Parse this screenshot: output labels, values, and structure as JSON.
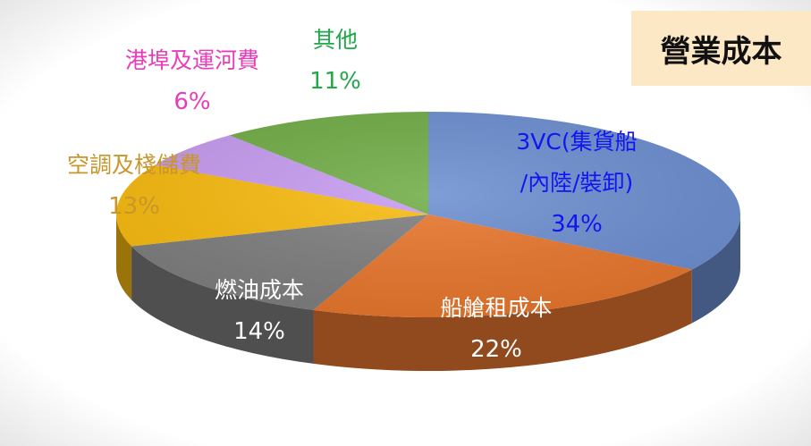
{
  "chart_data": {
    "type": "pie3d",
    "title": "營業成本",
    "categories": [
      "3VC(集貨船\n/內陸/裝卸)",
      "船艙租成本",
      "燃油成本",
      "空調及棧儲費",
      "港埠及運河費",
      "其他"
    ],
    "values": [
      34,
      22,
      14,
      13,
      6,
      11
    ],
    "value_labels": [
      "34%",
      "22%",
      "14%",
      "13%",
      "6%",
      "11%"
    ],
    "colors": [
      "#6d8fd0",
      "#e8772e",
      "#7f7f7f",
      "#f8bb10",
      "#c79cf0",
      "#72ad48"
    ]
  }
}
